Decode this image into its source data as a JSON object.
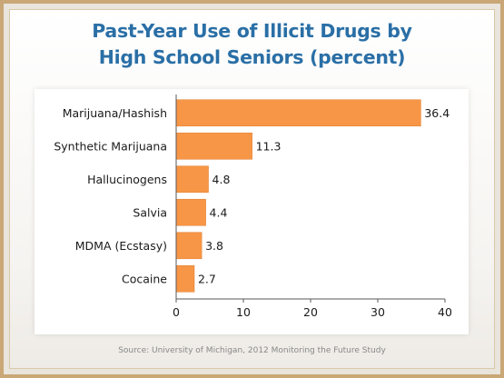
{
  "slide": {
    "title_line1": "Past-Year Use of Illicit Drugs by",
    "title_line2": "High School Seniors (percent)",
    "source": "Source: University of Michigan, 2012 Monitoring the Future Study"
  },
  "colors": {
    "bar": "#f79646",
    "bar_edge": "#e3863a",
    "title": "#2a6fa6",
    "axis": "#595959"
  },
  "chart_data": {
    "type": "bar",
    "orientation": "horizontal",
    "title": "Past-Year Use of Illicit Drugs by High School Seniors (percent)",
    "categories": [
      "Marijuana/Hashish",
      "Synthetic Marijuana",
      "Hallucinogens",
      "Salvia",
      "MDMA (Ecstasy)",
      "Cocaine"
    ],
    "values": [
      36.4,
      11.3,
      4.8,
      4.4,
      3.8,
      2.7
    ],
    "value_labels": [
      "36.4",
      "11.3",
      "4.8",
      "4.4",
      "3.8",
      "2.7"
    ],
    "xlim": [
      0,
      40
    ],
    "xticks": [
      0,
      10,
      20,
      30,
      40
    ],
    "xtick_labels": [
      "0",
      "10",
      "20",
      "30",
      "40"
    ],
    "grid": false,
    "legend": "none"
  }
}
